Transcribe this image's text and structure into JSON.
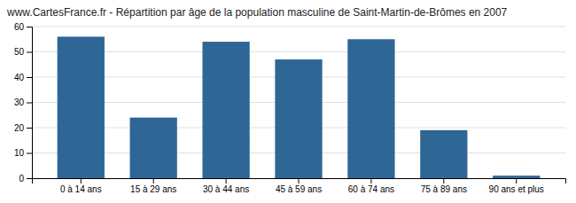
{
  "chart_data": {
    "type": "bar",
    "title": "www.CartesFrance.fr - Répartition par âge de la population masculine de Saint-Martin-de-Brômes en 2007",
    "categories": [
      "0 à 14 ans",
      "15 à 29 ans",
      "30 à 44 ans",
      "45 à 59 ans",
      "60 à 74 ans",
      "75 à 89 ans",
      "90 ans et plus"
    ],
    "values": [
      56,
      24,
      54,
      47,
      55,
      19,
      1
    ],
    "color": "#2e6695",
    "ylim": [
      0,
      60
    ],
    "yticks": [
      0,
      10,
      20,
      30,
      40,
      50,
      60
    ],
    "grid": true
  }
}
